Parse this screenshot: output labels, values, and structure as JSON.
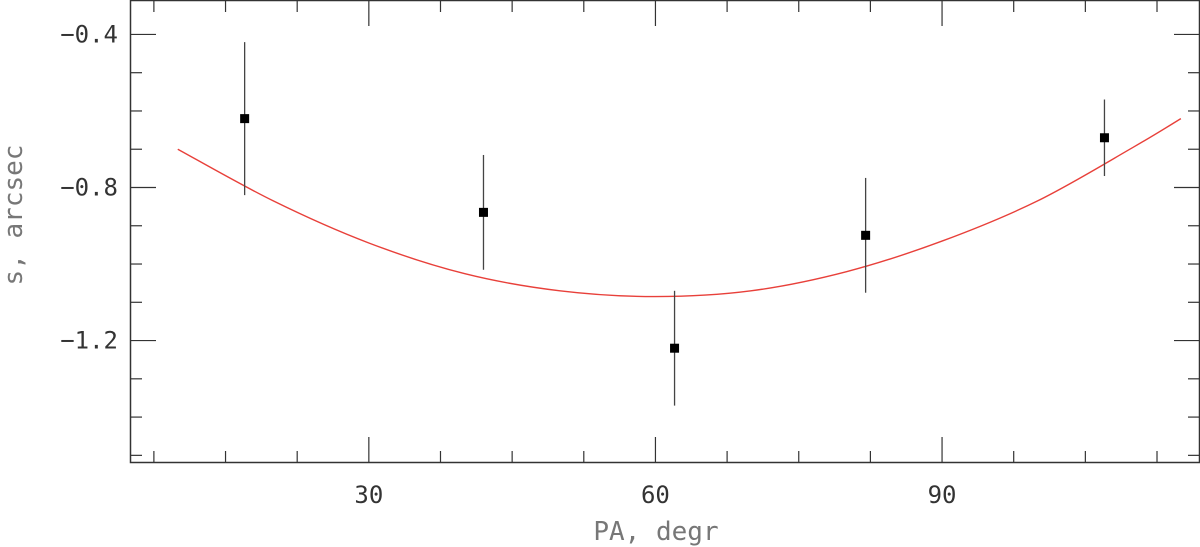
{
  "chart_data": {
    "type": "scatter",
    "xlabel": "PA, degr",
    "ylabel": "s, arcsec",
    "xlim": [
      5,
      117
    ],
    "ylim": [
      -1.52,
      -0.31
    ],
    "x_major_ticks": [
      30,
      60,
      90
    ],
    "x_tick_labels": [
      "30",
      "60",
      "90"
    ],
    "x_minor_step": 7.5,
    "y_major_ticks": [
      -0.4,
      -0.8,
      -1.2
    ],
    "y_tick_labels": [
      "−0.4",
      "−0.8",
      "−1.2"
    ],
    "y_minor_step": 0.1,
    "grid": false,
    "legend": "none",
    "series": [
      {
        "kind": "points-with-errorbars",
        "color": "#000000",
        "points": [
          {
            "x": 17.0,
            "y": -0.62,
            "err": 0.2
          },
          {
            "x": 42.0,
            "y": -0.865,
            "err": 0.15
          },
          {
            "x": 62.0,
            "y": -1.22,
            "err": 0.15
          },
          {
            "x": 82.0,
            "y": -0.925,
            "err": 0.15
          },
          {
            "x": 107.0,
            "y": -0.67,
            "err": 0.1
          }
        ]
      },
      {
        "kind": "fit-curve",
        "color": "#e8403a",
        "x": [
          10,
          20,
          30,
          40,
          50,
          60,
          70,
          80,
          90,
          100,
          110,
          115
        ],
        "y": [
          -0.7,
          -0.835,
          -0.945,
          -1.025,
          -1.07,
          -1.085,
          -1.07,
          -1.02,
          -0.94,
          -0.835,
          -0.695,
          -0.62
        ]
      }
    ]
  }
}
